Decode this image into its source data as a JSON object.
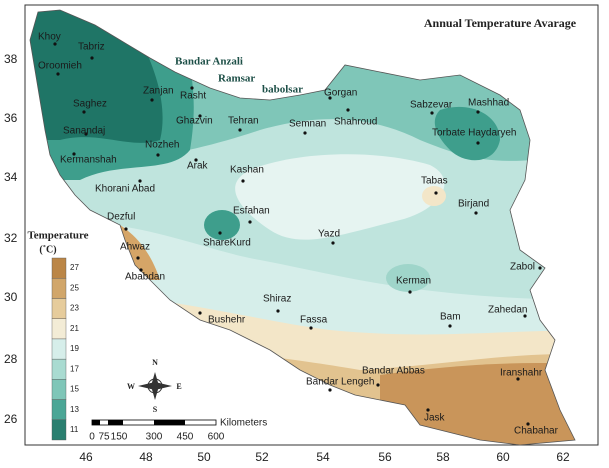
{
  "title": "Annual Temperature Avarage",
  "x_ticks": [
    46,
    48,
    50,
    52,
    54,
    56,
    58,
    60,
    62
  ],
  "y_ticks": [
    26,
    28,
    30,
    32,
    34,
    36,
    38
  ],
  "legend": {
    "title": "Temperature",
    "unit": "(˚C)",
    "ticks": [
      11,
      13,
      15,
      17,
      19,
      21,
      23,
      25,
      27
    ]
  },
  "scale_bar": {
    "labels": [
      "0",
      "75",
      "150",
      "300",
      "450",
      "600"
    ],
    "unit": "Kilometers"
  },
  "compass": {
    "north": "N",
    "south": "S",
    "east": "E",
    "west": "W"
  },
  "places": [
    "Khoy",
    "Tabriz",
    "Oroomieh",
    "Bandar Anzali",
    "Ramsar",
    "babolsar",
    "Zanjan",
    "Rasht",
    "Gorgan",
    "Saghez",
    "Ghazvin",
    "Tehran",
    "Semnan",
    "Shahroud",
    "Sabzevar",
    "Mashhad",
    "Sanandaj",
    "Torbate Haydaryeh",
    "Nozheh",
    "Kermanshah",
    "Arak",
    "Kashan",
    "Khorani Abad",
    "Tabas",
    "Esfahan",
    "Birjand",
    "Dezful",
    "Yazd",
    "ShareKurd",
    "Ahwaz",
    "Zabol",
    "Ababdan",
    "Kerman",
    "Shiraz",
    "Zahedan",
    "Bushehr",
    "Fassa",
    "Bam",
    "Bandar Abbas",
    "Iranshahr",
    "Bandar Lengeh",
    "Jask",
    "Chabahar"
  ]
}
